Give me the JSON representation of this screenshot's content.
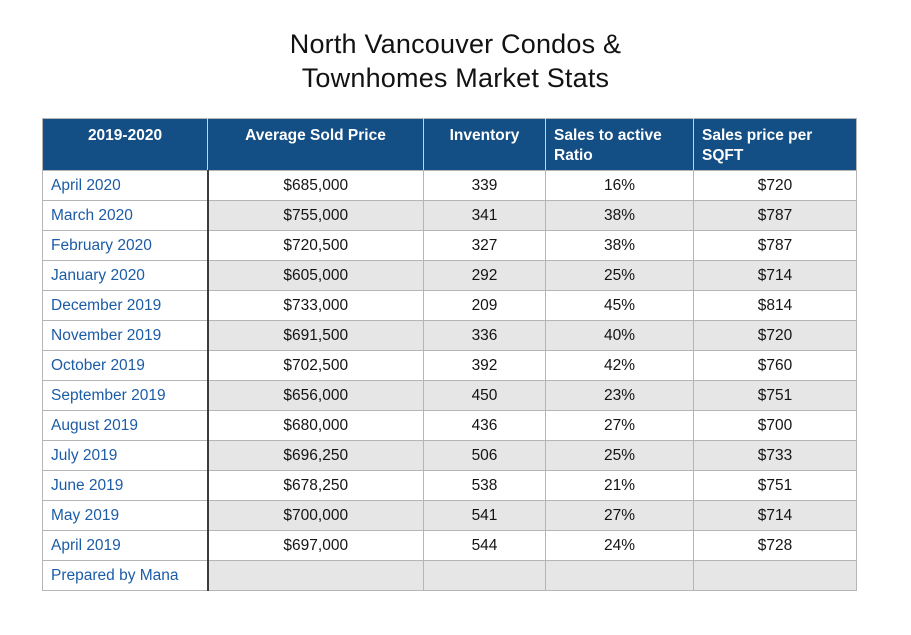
{
  "title": {
    "line1": "North Vancouver Condos &",
    "line2": "Townhomes Market Stats"
  },
  "chart_data": {
    "type": "table",
    "title": "North Vancouver Condos & Townhomes Market Stats",
    "columns": [
      {
        "label": "2019-2020",
        "align": "center"
      },
      {
        "label": "Average Sold Price",
        "align": "center"
      },
      {
        "label": "Inventory",
        "align": "center"
      },
      {
        "label": "Sales to active Ratio",
        "align": "left"
      },
      {
        "label": "Sales price per SQFT",
        "align": "left"
      }
    ],
    "rows": [
      {
        "period": "April 2020",
        "avg_sold_price": "$685,000",
        "inventory": "339",
        "sales_to_active_ratio": "16%",
        "sales_price_per_sqft": "$720"
      },
      {
        "period": "March 2020",
        "avg_sold_price": "$755,000",
        "inventory": "341",
        "sales_to_active_ratio": "38%",
        "sales_price_per_sqft": "$787"
      },
      {
        "period": "February 2020",
        "avg_sold_price": "$720,500",
        "inventory": "327",
        "sales_to_active_ratio": "38%",
        "sales_price_per_sqft": "$787"
      },
      {
        "period": "January 2020",
        "avg_sold_price": "$605,000",
        "inventory": "292",
        "sales_to_active_ratio": "25%",
        "sales_price_per_sqft": "$714"
      },
      {
        "period": "December 2019",
        "avg_sold_price": "$733,000",
        "inventory": "209",
        "sales_to_active_ratio": "45%",
        "sales_price_per_sqft": "$814"
      },
      {
        "period": "November 2019",
        "avg_sold_price": "$691,500",
        "inventory": "336",
        "sales_to_active_ratio": "40%",
        "sales_price_per_sqft": "$720"
      },
      {
        "period": "October 2019",
        "avg_sold_price": "$702,500",
        "inventory": "392",
        "sales_to_active_ratio": "42%",
        "sales_price_per_sqft": "$760"
      },
      {
        "period": "September 2019",
        "avg_sold_price": "$656,000",
        "inventory": "450",
        "sales_to_active_ratio": "23%",
        "sales_price_per_sqft": "$751"
      },
      {
        "period": "August 2019",
        "avg_sold_price": "$680,000",
        "inventory": "436",
        "sales_to_active_ratio": "27%",
        "sales_price_per_sqft": "$700"
      },
      {
        "period": "July 2019",
        "avg_sold_price": "$696,250",
        "inventory": "506",
        "sales_to_active_ratio": "25%",
        "sales_price_per_sqft": "$733"
      },
      {
        "period": "June 2019",
        "avg_sold_price": "$678,250",
        "inventory": "538",
        "sales_to_active_ratio": "21%",
        "sales_price_per_sqft": "$751"
      },
      {
        "period": "May 2019",
        "avg_sold_price": "$700,000",
        "inventory": "541",
        "sales_to_active_ratio": "27%",
        "sales_price_per_sqft": "$714"
      },
      {
        "period": "April 2019",
        "avg_sold_price": "$697,000",
        "inventory": "544",
        "sales_to_active_ratio": "24%",
        "sales_price_per_sqft": "$728"
      }
    ],
    "footer_note": "Prepared by Mana",
    "layout": {
      "striped": true,
      "first_column_always_white": true
    }
  },
  "colors": {
    "header_bg": "#134e85",
    "header_text": "#ffffff",
    "month_label_text": "#1c5ca6",
    "alt_row_bg": "#e6e6e6",
    "body_text": "#141414",
    "grid_line": "#b5b5b5",
    "first_column_rule": "#3c3c3c"
  }
}
